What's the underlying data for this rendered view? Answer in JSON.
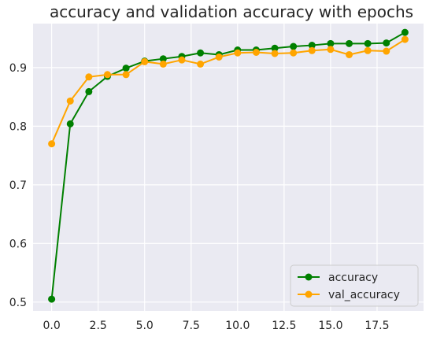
{
  "chart_data": {
    "type": "line",
    "title": "accuracy and validation accuracy with epochs",
    "xlabel": "",
    "ylabel": "",
    "x": [
      0,
      1,
      2,
      3,
      4,
      5,
      6,
      7,
      8,
      9,
      10,
      11,
      12,
      13,
      14,
      15,
      16,
      17,
      18,
      19
    ],
    "xlim": [
      -1,
      20
    ],
    "ylim": [
      0.485,
      0.975
    ],
    "xticks": [
      0.0,
      2.5,
      5.0,
      7.5,
      10.0,
      12.5,
      15.0,
      17.5
    ],
    "xtick_labels": [
      "0.0",
      "2.5",
      "5.0",
      "7.5",
      "10.0",
      "12.5",
      "15.0",
      "17.5"
    ],
    "yticks": [
      0.5,
      0.6,
      0.7,
      0.8,
      0.9
    ],
    "ytick_labels": [
      "0.5",
      "0.6",
      "0.7",
      "0.8",
      "0.9"
    ],
    "grid": true,
    "legend_position": "bottom-right",
    "background_color": "#eaeaf2",
    "series": [
      {
        "name": "accuracy",
        "color": "#008000",
        "values": [
          0.505,
          0.804,
          0.859,
          0.885,
          0.899,
          0.911,
          0.915,
          0.919,
          0.925,
          0.922,
          0.93,
          0.93,
          0.933,
          0.936,
          0.938,
          0.941,
          0.941,
          0.941,
          0.942,
          0.96
        ]
      },
      {
        "name": "val_accuracy",
        "color": "#ffa500",
        "values": [
          0.77,
          0.843,
          0.884,
          0.888,
          0.888,
          0.91,
          0.906,
          0.913,
          0.906,
          0.918,
          0.925,
          0.926,
          0.924,
          0.925,
          0.929,
          0.931,
          0.922,
          0.929,
          0.928,
          0.948
        ]
      }
    ]
  }
}
